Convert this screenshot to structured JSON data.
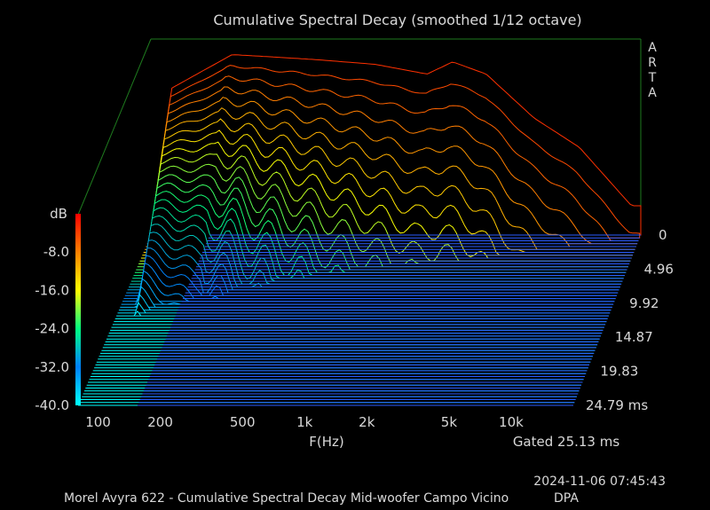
{
  "chart_data": {
    "type": "waterfall",
    "title": "Cumulative Spectral Decay (smoothed 1/12 octave)",
    "watermark": "ARTA",
    "xlabel": "F(Hz)",
    "x_scale": "log",
    "xlim": [
      80,
      20000
    ],
    "x_ticks": [
      {
        "value": 100,
        "label": "100"
      },
      {
        "value": 200,
        "label": "200"
      },
      {
        "value": 500,
        "label": "500"
      },
      {
        "value": 1000,
        "label": "1k"
      },
      {
        "value": 2000,
        "label": "2k"
      },
      {
        "value": 5000,
        "label": "5k"
      },
      {
        "value": 10000,
        "label": "10k"
      }
    ],
    "zlabel": "dB",
    "zlim": [
      -40,
      0
    ],
    "z_ticks": [
      {
        "value": -8,
        "label": "-8.0"
      },
      {
        "value": -16,
        "label": "-16.0"
      },
      {
        "value": -24,
        "label": "-24.0"
      },
      {
        "value": -32,
        "label": "-32.0"
      },
      {
        "value": -40,
        "label": "-40.0"
      }
    ],
    "time_unit": "ms",
    "time_ticks": [
      {
        "value": 0,
        "label": "0"
      },
      {
        "value": 4.96,
        "label": "4.96"
      },
      {
        "value": 9.92,
        "label": "9.92"
      },
      {
        "value": 14.87,
        "label": "14.87"
      },
      {
        "value": 19.83,
        "label": "19.83"
      },
      {
        "value": 24.79,
        "label": "24.79 ms"
      }
    ],
    "gated_label": "Gated 25.13 ms",
    "slice_count": 60,
    "colormap": [
      "#00ffff",
      "#0080ff",
      "#00ff80",
      "#ffff00",
      "#ff8000",
      "#ff0000"
    ],
    "floor_color": "#2a5cff",
    "frame_color": "#1e7a1e",
    "initial_response_db": [
      {
        "f": 85,
        "db": -38
      },
      {
        "f": 100,
        "db": -10
      },
      {
        "f": 200,
        "db": -3
      },
      {
        "f": 500,
        "db": -4
      },
      {
        "f": 1000,
        "db": -5
      },
      {
        "f": 1800,
        "db": -7
      },
      {
        "f": 2400,
        "db": -4.5
      },
      {
        "f": 3500,
        "db": -7
      },
      {
        "f": 6000,
        "db": -16
      },
      {
        "f": 10000,
        "db": -22
      },
      {
        "f": 18000,
        "db": -34
      }
    ]
  },
  "footer": {
    "timestamp": "2024-11-06   07:45:43",
    "caption": "Morel Avyra 622 - Cumulative Spectral Decay Mid-woofer Campo Vicino",
    "dpa": "DPA"
  }
}
